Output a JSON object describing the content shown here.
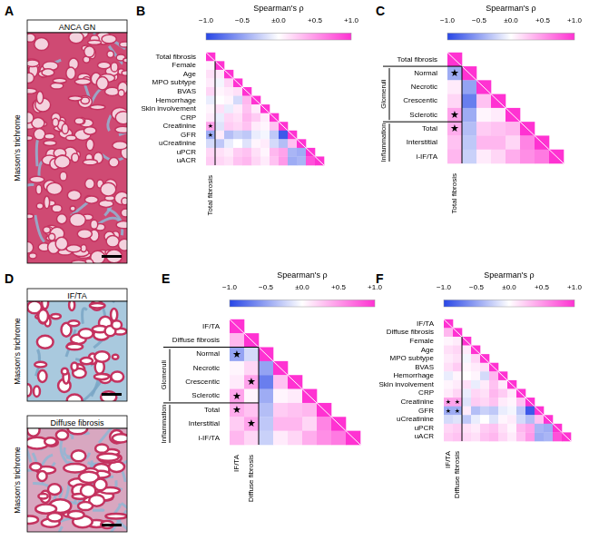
{
  "images": [
    {
      "label": "A",
      "panels": [
        {
          "title": "ANCA GN",
          "stain": "Masson's trichrome"
        }
      ]
    },
    {
      "label": "D",
      "panels": [
        {
          "title": "IF/TA",
          "stain": "Masson's trichrome"
        },
        {
          "title": "Diffuse fibrosis",
          "stain": "Masson's trichrome"
        }
      ]
    }
  ],
  "chart_data": [
    {
      "label": "B",
      "type": "heatmap",
      "rows": [
        "Total fibrosis",
        "Female",
        "Age",
        "MPO subtype",
        "BVAS",
        "Hemorrhage",
        "Skin involvement",
        "CRP",
        "Creatinine",
        "GFR",
        "uCreatinine",
        "uPCR",
        "uACR"
      ],
      "column_labels": [
        "Total fibrosis"
      ],
      "rho": [
        [
          1
        ],
        [
          0.05,
          1
        ],
        [
          0.15,
          0.1,
          1
        ],
        [
          0.1,
          -0.05,
          0.2,
          1
        ],
        [
          0.2,
          0.05,
          0.1,
          0.15,
          1
        ],
        [
          -0.1,
          0.0,
          0.05,
          -0.2,
          0.35,
          1
        ],
        [
          0.05,
          0.15,
          -0.1,
          0.1,
          0.3,
          0.1,
          1
        ],
        [
          0.1,
          -0.1,
          0.2,
          0.15,
          0.35,
          0.25,
          0.1,
          1
        ],
        [
          0.45,
          -0.15,
          0.25,
          0.2,
          0.3,
          0.1,
          0.05,
          0.3,
          1
        ],
        [
          -0.45,
          0.1,
          -0.35,
          -0.25,
          -0.3,
          -0.1,
          -0.05,
          -0.3,
          -0.9,
          1
        ],
        [
          -0.2,
          -0.3,
          -0.1,
          0.0,
          -0.15,
          0.05,
          0.1,
          -0.2,
          -0.35,
          0.3,
          1
        ],
        [
          0.2,
          0.15,
          0.1,
          0.25,
          0.3,
          0.15,
          0.05,
          0.35,
          0.45,
          -0.4,
          -0.45,
          1
        ],
        [
          0.25,
          0.2,
          0.15,
          0.3,
          0.35,
          0.2,
          0.1,
          0.3,
          0.5,
          -0.45,
          -0.4,
          0.85,
          1
        ]
      ],
      "significant": [
        [
          "Creatinine",
          "Total fibrosis"
        ],
        [
          "GFR",
          "Total fibrosis"
        ]
      ],
      "significance_mark": "★",
      "groups": [],
      "colorbar": {
        "title": "Spearman's ρ",
        "range": [
          -1,
          1
        ],
        "colors": [
          "#2846e6",
          "#ffffff",
          "#ff32d2"
        ],
        "ticks": [
          {
            "value": -1,
            "label": "−1.0"
          },
          {
            "value": -0.5,
            "label": "−0.5"
          },
          {
            "value": 0,
            "label": "±0.0"
          },
          {
            "value": 0.5,
            "label": "+0.5"
          },
          {
            "value": 1,
            "label": "+1.0"
          }
        ]
      }
    },
    {
      "label": "C",
      "type": "heatmap",
      "rows": [
        "Total fibrosis",
        "Normal",
        "Necrotic",
        "Crescentic",
        "Sclerotic",
        "Total",
        "Interstitial",
        "i-IF/TA"
      ],
      "column_labels": [
        "Total fibrosis"
      ],
      "rho": [
        [
          1
        ],
        [
          -0.45,
          1
        ],
        [
          0.1,
          -0.5,
          1
        ],
        [
          0.2,
          -0.7,
          0.3,
          1
        ],
        [
          0.45,
          -0.45,
          0.05,
          0.1,
          1
        ],
        [
          0.4,
          -0.35,
          0.25,
          0.3,
          0.35,
          1
        ],
        [
          0.3,
          -0.3,
          0.35,
          0.35,
          0.2,
          0.6,
          1
        ],
        [
          0.35,
          -0.25,
          0.1,
          0.2,
          0.4,
          0.55,
          0.65,
          1
        ]
      ],
      "significant": [
        [
          "Normal",
          "Total fibrosis"
        ],
        [
          "Sclerotic",
          "Total fibrosis"
        ],
        [
          "Total",
          "Total fibrosis"
        ]
      ],
      "significance_mark": "★",
      "groups": [
        {
          "label": "Glomeruli",
          "rows": [
            "Normal",
            "Necrotic",
            "Crescentic",
            "Sclerotic"
          ]
        },
        {
          "label": "Inflammation",
          "rows": [
            "Total",
            "Interstitial",
            "i-IF/TA"
          ]
        }
      ],
      "colorbar": {
        "title": "Spearman's ρ",
        "range": [
          -1,
          1
        ],
        "colors": [
          "#2846e6",
          "#ffffff",
          "#ff32d2"
        ],
        "ticks": [
          {
            "value": -1,
            "label": "−1.0"
          },
          {
            "value": -0.5,
            "label": "−0.5"
          },
          {
            "value": 0,
            "label": "±0.0"
          },
          {
            "value": 0.5,
            "label": "+0.5"
          },
          {
            "value": 1,
            "label": "+1.0"
          }
        ]
      }
    },
    {
      "label": "E",
      "type": "heatmap",
      "rows": [
        "IF/TA",
        "Diffuse fibrosis",
        "Normal",
        "Necrotic",
        "Crescentic",
        "Sclerotic",
        "Total",
        "Interstitial",
        "i-IF/TA"
      ],
      "column_labels": [
        "IF/TA",
        "Diffuse fibrosis"
      ],
      "rho": [
        [
          1
        ],
        [
          0.35,
          1
        ],
        [
          -0.5,
          -0.2,
          1
        ],
        [
          0.05,
          0.2,
          -0.5,
          1
        ],
        [
          0.1,
          0.45,
          -0.7,
          0.3,
          1
        ],
        [
          0.45,
          0.05,
          -0.45,
          0.05,
          0.1,
          1
        ],
        [
          0.4,
          0.3,
          -0.35,
          0.25,
          0.3,
          0.35,
          1
        ],
        [
          0.25,
          0.45,
          -0.3,
          0.35,
          0.35,
          0.2,
          0.6,
          1
        ],
        [
          0.35,
          0.2,
          -0.25,
          0.1,
          0.2,
          0.4,
          0.55,
          0.65,
          1
        ]
      ],
      "significant": [
        [
          "Normal",
          "IF/TA"
        ],
        [
          "Crescentic",
          "Diffuse fibrosis"
        ],
        [
          "Sclerotic",
          "IF/TA"
        ],
        [
          "Total",
          "IF/TA"
        ],
        [
          "Interstitial",
          "Diffuse fibrosis"
        ]
      ],
      "significance_mark": "★",
      "groups": [
        {
          "label": "Glomeruli",
          "rows": [
            "Normal",
            "Necrotic",
            "Crescentic",
            "Sclerotic"
          ]
        },
        {
          "label": "Inflammation",
          "rows": [
            "Total",
            "Interstitial",
            "i-IF/TA"
          ]
        }
      ],
      "colorbar": {
        "title": "Spearman's ρ",
        "range": [
          -1,
          1
        ],
        "colors": [
          "#2846e6",
          "#ffffff",
          "#ff32d2"
        ],
        "ticks": [
          {
            "value": -1,
            "label": "−1.0"
          },
          {
            "value": -0.5,
            "label": "−0.5"
          },
          {
            "value": 0,
            "label": "±0.0"
          },
          {
            "value": 0.5,
            "label": "+0.5"
          },
          {
            "value": 1,
            "label": "+1.0"
          }
        ]
      }
    },
    {
      "label": "F",
      "type": "heatmap",
      "rows": [
        "IF/TA",
        "Diffuse fibrosis",
        "Female",
        "Age",
        "MPO subtype",
        "BVAS",
        "Hemorrhage",
        "Skin involvement",
        "CRP",
        "Creatinine",
        "GFR",
        "uCreatinine",
        "uPCR",
        "uACR"
      ],
      "column_labels": [
        "IF/TA",
        "Diffuse fibrosis"
      ],
      "rho": [
        [
          1
        ],
        [
          0.35,
          1
        ],
        [
          0.05,
          0.1,
          1
        ],
        [
          0.15,
          0.2,
          0.1,
          1
        ],
        [
          0.1,
          0.15,
          -0.05,
          0.2,
          1
        ],
        [
          0.15,
          0.25,
          0.05,
          0.1,
          0.15,
          1
        ],
        [
          -0.1,
          0.05,
          0.0,
          0.05,
          -0.2,
          0.35,
          1
        ],
        [
          0.05,
          0.1,
          0.15,
          -0.1,
          0.1,
          0.3,
          0.1,
          1
        ],
        [
          0.1,
          0.2,
          -0.1,
          0.2,
          0.15,
          0.35,
          0.25,
          0.1,
          1
        ],
        [
          0.45,
          0.45,
          -0.15,
          0.25,
          0.2,
          0.3,
          0.1,
          0.05,
          0.3,
          1
        ],
        [
          -0.45,
          -0.45,
          0.1,
          -0.35,
          -0.25,
          -0.3,
          -0.1,
          -0.05,
          -0.3,
          -0.9,
          1
        ],
        [
          -0.2,
          -0.15,
          -0.3,
          -0.1,
          0.0,
          -0.15,
          0.05,
          0.1,
          -0.2,
          -0.35,
          0.3,
          1
        ],
        [
          0.2,
          0.25,
          0.15,
          0.1,
          0.25,
          0.3,
          0.15,
          0.05,
          0.35,
          0.45,
          -0.4,
          -0.45,
          1
        ],
        [
          0.25,
          0.3,
          0.2,
          0.15,
          0.3,
          0.35,
          0.2,
          0.1,
          0.3,
          0.5,
          -0.45,
          -0.4,
          0.85,
          1
        ]
      ],
      "significant": [
        [
          "Creatinine",
          "IF/TA"
        ],
        [
          "Creatinine",
          "Diffuse fibrosis"
        ],
        [
          "GFR",
          "IF/TA"
        ],
        [
          "GFR",
          "Diffuse fibrosis"
        ]
      ],
      "significance_mark": "★",
      "groups": [],
      "colorbar": {
        "title": "Spearman's ρ",
        "range": [
          -1,
          1
        ],
        "colors": [
          "#2846e6",
          "#ffffff",
          "#ff32d2"
        ],
        "ticks": [
          {
            "value": -1,
            "label": "−1.0"
          },
          {
            "value": -0.5,
            "label": "−0.5"
          },
          {
            "value": 0,
            "label": "±0.0"
          },
          {
            "value": 0.5,
            "label": "+0.5"
          },
          {
            "value": 1,
            "label": "+1.0"
          }
        ]
      }
    }
  ]
}
